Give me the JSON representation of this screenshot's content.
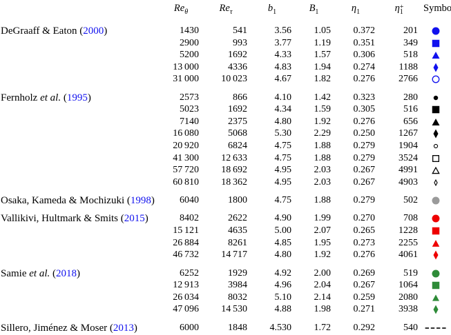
{
  "colors": {
    "blue": "#1111ee",
    "black": "#000000",
    "gray": "#9a9a9a",
    "red": "#ee0000",
    "green": "#2e8b38",
    "link": "#1111ee",
    "text": "#000000",
    "background": "#ffffff"
  },
  "table": {
    "headers": [
      {
        "id": "re-theta",
        "main": "Re",
        "sub": "θ",
        "italic": true,
        "sub_italic": true
      },
      {
        "id": "re-tau",
        "main": "Re",
        "sub": "τ",
        "italic": true,
        "sub_italic": true
      },
      {
        "id": "b1",
        "main": "b",
        "sub": "1",
        "italic": true,
        "sub_italic": false
      },
      {
        "id": "B1",
        "main": "B",
        "sub": "1",
        "italic": true,
        "sub_italic": false
      },
      {
        "id": "eta1",
        "main": "η",
        "sub": "1",
        "italic": true,
        "sub_italic": false
      },
      {
        "id": "eta1-plus",
        "main": "η",
        "sub": "1",
        "sup": "+",
        "italic": true,
        "sub_italic": false
      },
      {
        "id": "symbol",
        "main": "Symbol",
        "italic": false
      }
    ],
    "groups": [
      {
        "ref": {
          "name": "DeGraaff & Eaton",
          "etal": null,
          "year": "2000"
        },
        "rows": [
          {
            "re_theta": "1430",
            "re_tau": "541",
            "b1": "3.56",
            "B1": "1.05",
            "eta1": "0.372",
            "eta1_plus": "201",
            "symbol": {
              "shape": "circle",
              "fill": true,
              "color": "blue",
              "size": 11
            }
          },
          {
            "re_theta": "2900",
            "re_tau": "993",
            "b1": "3.77",
            "B1": "1.19",
            "eta1": "0.351",
            "eta1_plus": "349",
            "symbol": {
              "shape": "square",
              "fill": true,
              "color": "blue",
              "size": 10.5
            }
          },
          {
            "re_theta": "5200",
            "re_tau": "1692",
            "b1": "4.33",
            "B1": "1.57",
            "eta1": "0.306",
            "eta1_plus": "518",
            "symbol": {
              "shape": "triangle",
              "fill": true,
              "color": "blue",
              "size": 11
            }
          },
          {
            "re_theta": "13 000",
            "re_tau": "4336",
            "b1": "4.83",
            "B1": "1.94",
            "eta1": "0.274",
            "eta1_plus": "1188",
            "symbol": {
              "shape": "diamond",
              "fill": true,
              "color": "blue",
              "size": 11
            }
          },
          {
            "re_theta": "31 000",
            "re_tau": "10 023",
            "b1": "4.67",
            "B1": "1.82",
            "eta1": "0.276",
            "eta1_plus": "2766",
            "symbol": {
              "shape": "circle",
              "fill": false,
              "color": "blue",
              "size": 11
            }
          }
        ]
      },
      {
        "ref": {
          "name": "Fernholz",
          "etal": "et al.",
          "year": "1995"
        },
        "rows": [
          {
            "re_theta": "2573",
            "re_tau": "866",
            "b1": "4.10",
            "B1": "1.42",
            "eta1": "0.323",
            "eta1_plus": "280",
            "symbol": {
              "shape": "circle",
              "fill": true,
              "color": "black",
              "size": 6.5
            }
          },
          {
            "re_theta": "5023",
            "re_tau": "1692",
            "b1": "4.34",
            "B1": "1.59",
            "eta1": "0.305",
            "eta1_plus": "516",
            "symbol": {
              "shape": "square",
              "fill": true,
              "color": "black",
              "size": 10.5
            }
          },
          {
            "re_theta": "7140",
            "re_tau": "2375",
            "b1": "4.80",
            "B1": "1.92",
            "eta1": "0.276",
            "eta1_plus": "656",
            "symbol": {
              "shape": "triangle",
              "fill": true,
              "color": "black",
              "size": 11
            }
          },
          {
            "re_theta": "16 080",
            "re_tau": "5068",
            "b1": "5.30",
            "B1": "2.29",
            "eta1": "0.250",
            "eta1_plus": "1267",
            "symbol": {
              "shape": "diamond",
              "fill": true,
              "color": "black",
              "size": 11
            }
          },
          {
            "re_theta": "20 920",
            "re_tau": "6824",
            "b1": "4.75",
            "B1": "1.88",
            "eta1": "0.279",
            "eta1_plus": "1904",
            "symbol": {
              "shape": "circle",
              "fill": false,
              "color": "black",
              "size": 6.5
            }
          },
          {
            "re_theta": "41 300",
            "re_tau": "12 633",
            "b1": "4.75",
            "B1": "1.88",
            "eta1": "0.279",
            "eta1_plus": "3524",
            "symbol": {
              "shape": "square",
              "fill": false,
              "color": "black",
              "size": 10
            }
          },
          {
            "re_theta": "57 720",
            "re_tau": "18 692",
            "b1": "4.95",
            "B1": "2.03",
            "eta1": "0.267",
            "eta1_plus": "4991",
            "symbol": {
              "shape": "triangle",
              "fill": false,
              "color": "black",
              "size": 11
            }
          },
          {
            "re_theta": "60 810",
            "re_tau": "18 362",
            "b1": "4.95",
            "B1": "2.03",
            "eta1": "0.267",
            "eta1_plus": "4903",
            "symbol": {
              "shape": "diamond",
              "fill": false,
              "color": "black",
              "size": 8
            }
          }
        ]
      },
      {
        "ref": {
          "name": "Osaka, Kameda & Mochizuki",
          "etal": null,
          "year": "1998"
        },
        "rows": [
          {
            "re_theta": "6040",
            "re_tau": "1800",
            "b1": "4.75",
            "B1": "1.88",
            "eta1": "0.279",
            "eta1_plus": "502",
            "symbol": {
              "shape": "circle",
              "fill": true,
              "color": "gray",
              "size": 11
            }
          }
        ]
      },
      {
        "ref": {
          "name": "Vallikivi, Hultmark & Smits",
          "etal": null,
          "year": "2015"
        },
        "rows": [
          {
            "re_theta": "8402",
            "re_tau": "2622",
            "b1": "4.90",
            "B1": "1.99",
            "eta1": "0.270",
            "eta1_plus": "708",
            "symbol": {
              "shape": "circle",
              "fill": true,
              "color": "red",
              "size": 11
            }
          },
          {
            "re_theta": "15 121",
            "re_tau": "4635",
            "b1": "5.00",
            "B1": "2.07",
            "eta1": "0.265",
            "eta1_plus": "1228",
            "symbol": {
              "shape": "square",
              "fill": true,
              "color": "red",
              "size": 10.5
            }
          },
          {
            "re_theta": "26 884",
            "re_tau": "8261",
            "b1": "4.85",
            "B1": "1.95",
            "eta1": "0.273",
            "eta1_plus": "2255",
            "symbol": {
              "shape": "triangle",
              "fill": true,
              "color": "red",
              "size": 10.5
            }
          },
          {
            "re_theta": "46 732",
            "re_tau": "14 717",
            "b1": "4.80",
            "B1": "1.92",
            "eta1": "0.276",
            "eta1_plus": "4061",
            "symbol": {
              "shape": "diamond",
              "fill": true,
              "color": "red",
              "size": 11
            }
          }
        ]
      },
      {
        "ref": {
          "name": "Samie",
          "etal": "et al.",
          "year": "2018"
        },
        "rows": [
          {
            "re_theta": "6252",
            "re_tau": "1929",
            "b1": "4.92",
            "B1": "2.00",
            "eta1": "0.269",
            "eta1_plus": "519",
            "symbol": {
              "shape": "circle",
              "fill": true,
              "color": "green",
              "size": 11
            }
          },
          {
            "re_theta": "12 913",
            "re_tau": "3984",
            "b1": "4.96",
            "B1": "2.04",
            "eta1": "0.267",
            "eta1_plus": "1064",
            "symbol": {
              "shape": "square",
              "fill": true,
              "color": "green",
              "size": 10.5
            }
          },
          {
            "re_theta": "26 034",
            "re_tau": "8032",
            "b1": "5.10",
            "B1": "2.14",
            "eta1": "0.259",
            "eta1_plus": "2080",
            "symbol": {
              "shape": "triangle",
              "fill": true,
              "color": "green",
              "size": 10
            }
          },
          {
            "re_theta": "47 096",
            "re_tau": "14 530",
            "b1": "4.88",
            "B1": "1.98",
            "eta1": "0.271",
            "eta1_plus": "3938",
            "symbol": {
              "shape": "diamond",
              "fill": true,
              "color": "green",
              "size": 11
            }
          }
        ]
      },
      {
        "ref": {
          "name": "Sillero, Jiménez & Moser",
          "etal": null,
          "year": "2013"
        },
        "rows": [
          {
            "re_theta": "6000",
            "re_tau": "1848",
            "b1": "4.530",
            "B1": "1.72",
            "eta1": "0.292",
            "eta1_plus": "540",
            "symbol": {
              "shape": "dashes",
              "fill": true,
              "color": "black",
              "size": 11
            }
          }
        ]
      }
    ]
  }
}
